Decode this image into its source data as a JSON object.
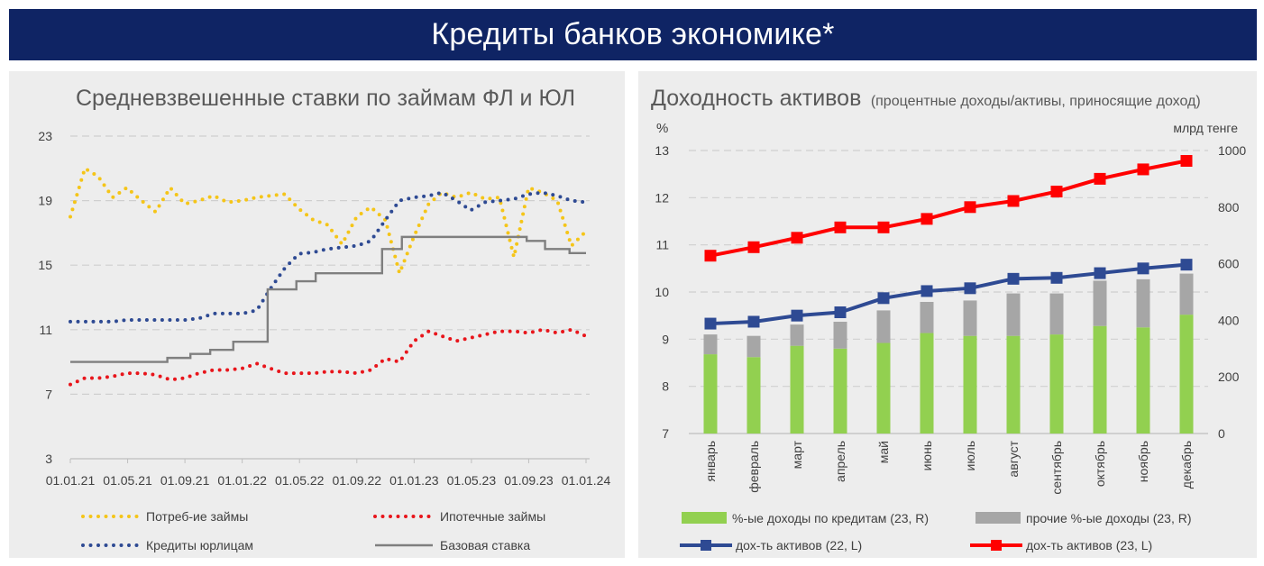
{
  "banner": {
    "title": "Кредиты банков экономике*"
  },
  "colors": {
    "banner_bg": "#0f2464",
    "panel_bg": "#ededed",
    "consumer": "#f5c518",
    "mortgage": "#e8151b",
    "corporate": "#2e4a93",
    "base_rate": "#7f7f7f",
    "green_bar": "#92d050",
    "gray_bar": "#a6a6a6",
    "red_line": "#ff0000",
    "blue_line": "#2e4a93"
  },
  "left_chart": {
    "title": "Средневзвешенные ставки по займам ФЛ и ЮЛ",
    "y_ticks": [
      "3",
      "7",
      "11",
      "15",
      "19",
      "23"
    ],
    "x_tick_labels": [
      "01.01.21",
      "01.05.21",
      "01.09.21",
      "01.01.22",
      "01.05.22",
      "01.09.22",
      "01.01.23",
      "01.05.23",
      "01.09.23",
      "01.01.24"
    ],
    "legend": {
      "consumer": "Потреб-ие займы",
      "mortgage": "Ипотечные займы",
      "corporate": "Кредиты юрлицам",
      "base_rate": "Базовая ставка"
    }
  },
  "right_chart": {
    "title_main": "Доходность активов",
    "title_sub": "(процентные доходы/активы, приносящие доход)",
    "left_axis_unit": "%",
    "right_axis_unit": "млрд тенге",
    "y_left_ticks": [
      "7",
      "8",
      "9",
      "10",
      "11",
      "12",
      "13"
    ],
    "y_right_ticks": [
      "0",
      "200",
      "400",
      "600",
      "800",
      "1000"
    ],
    "months": [
      "январь",
      "февраль",
      "март",
      "апрель",
      "май",
      "июнь",
      "июль",
      "август",
      "сентябрь",
      "октябрь",
      "ноябрь",
      "декабрь"
    ],
    "legend": {
      "green": "%-ые доходы по кредитам (23, R)",
      "gray": "прочие %-ые доходы (23, R)",
      "blue": "дох-ть активов (22, L)",
      "red": "дох-ть активов (23, L)"
    }
  },
  "chart_data": [
    {
      "type": "line",
      "title": "Средневзвешенные ставки по займам ФЛ и ЮЛ",
      "x_range": [
        "2021-01-01",
        "2024-01-01"
      ],
      "x_ticks": [
        "01.01.21",
        "01.05.21",
        "01.09.21",
        "01.01.22",
        "01.05.22",
        "01.09.22",
        "01.01.23",
        "01.05.23",
        "01.09.23",
        "01.01.24"
      ],
      "ylim": [
        3,
        23
      ],
      "grid": true,
      "legend_position": "bottom",
      "series": [
        {
          "name": "Потреб-ие займы",
          "style": "dotted",
          "x": [
            "2021-01-01",
            "2021-02-01",
            "2021-03-01",
            "2021-04-01",
            "2021-05-01",
            "2021-06-01",
            "2021-07-01",
            "2021-08-01",
            "2021-09-01",
            "2021-10-01",
            "2021-11-01",
            "2021-12-01",
            "2022-01-01",
            "2022-02-01",
            "2022-03-01",
            "2022-04-01",
            "2022-05-01",
            "2022-06-01",
            "2022-07-01",
            "2022-08-01",
            "2022-09-01",
            "2022-10-01",
            "2022-11-01",
            "2022-12-01",
            "2023-01-01",
            "2023-02-01",
            "2023-03-01",
            "2023-04-01",
            "2023-05-01",
            "2023-06-01",
            "2023-07-01",
            "2023-08-01",
            "2023-09-01",
            "2023-10-01",
            "2023-11-01",
            "2023-12-01",
            "2024-01-01"
          ],
          "y": [
            18.0,
            21.0,
            20.5,
            19.2,
            19.8,
            19.0,
            18.3,
            19.8,
            18.8,
            19.0,
            19.3,
            18.9,
            19.0,
            19.2,
            19.3,
            19.4,
            18.5,
            17.8,
            17.5,
            16.3,
            18.0,
            18.6,
            17.8,
            14.5,
            16.8,
            18.8,
            19.5,
            19.2,
            19.5,
            19.1,
            19.2,
            15.5,
            19.8,
            19.5,
            19.0,
            16.2,
            17.1
          ]
        },
        {
          "name": "Ипотечные займы",
          "style": "dotted",
          "x": [
            "2021-01-01",
            "2021-02-01",
            "2021-03-01",
            "2021-04-01",
            "2021-05-01",
            "2021-06-01",
            "2021-07-01",
            "2021-08-01",
            "2021-09-01",
            "2021-10-01",
            "2021-11-01",
            "2021-12-01",
            "2022-01-01",
            "2022-02-01",
            "2022-03-01",
            "2022-04-01",
            "2022-05-01",
            "2022-06-01",
            "2022-07-01",
            "2022-08-01",
            "2022-09-01",
            "2022-10-01",
            "2022-11-01",
            "2022-12-01",
            "2023-01-01",
            "2023-02-01",
            "2023-03-01",
            "2023-04-01",
            "2023-05-01",
            "2023-06-01",
            "2023-07-01",
            "2023-08-01",
            "2023-09-01",
            "2023-10-01",
            "2023-11-01",
            "2023-12-01",
            "2024-01-01"
          ],
          "y": [
            7.6,
            8.0,
            8.0,
            8.1,
            8.3,
            8.3,
            8.2,
            7.9,
            8.0,
            8.3,
            8.5,
            8.5,
            8.6,
            8.9,
            8.6,
            8.3,
            8.3,
            8.3,
            8.4,
            8.4,
            8.3,
            8.5,
            9.2,
            9.0,
            10.3,
            10.9,
            10.6,
            10.3,
            10.5,
            10.7,
            10.9,
            10.9,
            10.8,
            11.0,
            10.8,
            11.0,
            10.6
          ]
        },
        {
          "name": "Кредиты юрлицам",
          "style": "dotted",
          "x": [
            "2021-01-01",
            "2021-02-01",
            "2021-03-01",
            "2021-04-01",
            "2021-05-01",
            "2021-06-01",
            "2021-07-01",
            "2021-08-01",
            "2021-09-01",
            "2021-10-01",
            "2021-11-01",
            "2021-12-01",
            "2022-01-01",
            "2022-02-01",
            "2022-03-01",
            "2022-04-01",
            "2022-05-01",
            "2022-06-01",
            "2022-07-01",
            "2022-08-01",
            "2022-09-01",
            "2022-10-01",
            "2022-11-01",
            "2022-12-01",
            "2023-01-01",
            "2023-02-01",
            "2023-03-01",
            "2023-04-01",
            "2023-05-01",
            "2023-06-01",
            "2023-07-01",
            "2023-08-01",
            "2023-09-01",
            "2023-10-01",
            "2023-11-01",
            "2023-12-01",
            "2024-01-01"
          ],
          "y": [
            11.5,
            11.5,
            11.5,
            11.5,
            11.6,
            11.6,
            11.6,
            11.6,
            11.6,
            11.7,
            12.0,
            12.0,
            12.0,
            12.2,
            13.5,
            14.8,
            15.7,
            15.8,
            16.0,
            16.1,
            16.2,
            16.5,
            17.8,
            19.0,
            19.2,
            19.3,
            19.5,
            19.0,
            18.4,
            18.9,
            19.0,
            19.1,
            19.4,
            19.5,
            19.3,
            19.0,
            18.9
          ]
        },
        {
          "name": "Базовая ставка",
          "style": "solid",
          "x": [
            "2021-01-01",
            "2021-07-26",
            "2021-09-13",
            "2021-10-25",
            "2021-12-13",
            "2022-02-24",
            "2022-04-26",
            "2022-06-06",
            "2022-07-26",
            "2022-10-25",
            "2022-12-06",
            "2023-08-28",
            "2023-10-06",
            "2023-11-27",
            "2024-01-01"
          ],
          "y": [
            9.0,
            9.25,
            9.5,
            9.75,
            10.25,
            13.5,
            14.0,
            14.5,
            14.5,
            16.0,
            16.75,
            16.5,
            16.0,
            15.75,
            15.75
          ]
        }
      ]
    },
    {
      "type": "bar+line",
      "title": "Доходность активов (процентные доходы/активы, приносящие доход)",
      "categories": [
        "январь",
        "февраль",
        "март",
        "апрель",
        "май",
        "июнь",
        "июль",
        "август",
        "сентябрь",
        "октябрь",
        "ноябрь",
        "декабрь"
      ],
      "y_left_label": "%",
      "y_left_lim": [
        7,
        13
      ],
      "y_right_label": "млрд тенге",
      "y_right_lim": [
        0,
        1000
      ],
      "grid": true,
      "legend_position": "bottom",
      "bar_series_stacked": [
        {
          "name": "%-ые доходы по кредитам (23, R)",
          "axis": "right",
          "values": [
            280,
            270,
            310,
            300,
            320,
            355,
            345,
            345,
            350,
            380,
            375,
            420
          ]
        },
        {
          "name": "прочие %-ые доходы (23, R)",
          "axis": "right",
          "values": [
            70,
            75,
            75,
            95,
            115,
            110,
            125,
            150,
            145,
            160,
            170,
            145
          ]
        }
      ],
      "line_series": [
        {
          "name": "дох-ть активов (22, L)",
          "axis": "left",
          "values": [
            9.33,
            9.37,
            9.5,
            9.57,
            9.87,
            10.02,
            10.08,
            10.28,
            10.3,
            10.4,
            10.5,
            10.58
          ]
        },
        {
          "name": "дох-ть активов (23, L)",
          "axis": "left",
          "values": [
            10.77,
            10.95,
            11.15,
            11.37,
            11.37,
            11.55,
            11.8,
            11.93,
            12.13,
            12.4,
            12.6,
            12.78
          ]
        }
      ]
    }
  ]
}
